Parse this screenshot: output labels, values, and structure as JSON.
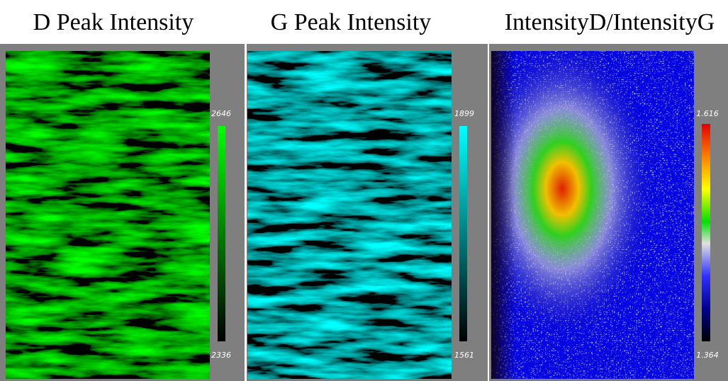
{
  "panels": [
    {
      "title": "D Peak Intensity",
      "colorbar": {
        "max": 2646,
        "min": 2336
      }
    },
    {
      "title": "G Peak Intensity",
      "colorbar": {
        "max": 1899,
        "min": 1561
      }
    },
    {
      "title": "IntensityD/IntensityG",
      "colorbar": {
        "max": 1.616,
        "min": 1.364
      }
    }
  ]
}
